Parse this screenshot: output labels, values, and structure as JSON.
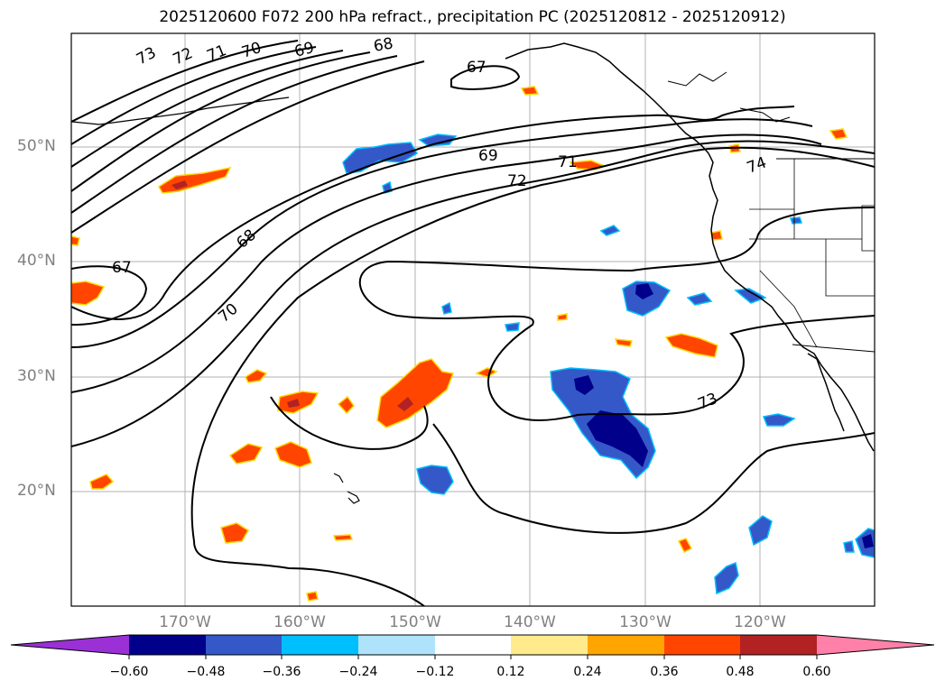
{
  "title": "2025120600 F072 200 hPa refract., precipitation PC (2025120812 - 2025120912)",
  "map": {
    "lat_labels": [
      "50°N",
      "40°N",
      "30°N",
      "20°N"
    ],
    "lon_labels": [
      "170°W",
      "160°W",
      "150°W",
      "140°W",
      "130°W",
      "120°W"
    ],
    "contour_labels": [
      "73",
      "72",
      "71",
      "70",
      "69",
      "68",
      "67",
      "69",
      "71",
      "72",
      "74",
      "68",
      "67",
      "70",
      "73"
    ]
  },
  "colorbar": {
    "labels": [
      "−0.60",
      "−0.48",
      "−0.36",
      "−0.24",
      "−0.12",
      "0.12",
      "0.24",
      "0.36",
      "0.48",
      "0.60"
    ],
    "colors": [
      "#9b30d6",
      "#00008b",
      "#3458c8",
      "#00bfff",
      "#aee3fb",
      "#ffffff",
      "#ffeb8c",
      "#ffa500",
      "#ff4500",
      "#b22222",
      "#ff80a8"
    ]
  },
  "colors": {
    "grid": "#b0b0b0",
    "contour": "#000000",
    "coast": "#000000"
  }
}
